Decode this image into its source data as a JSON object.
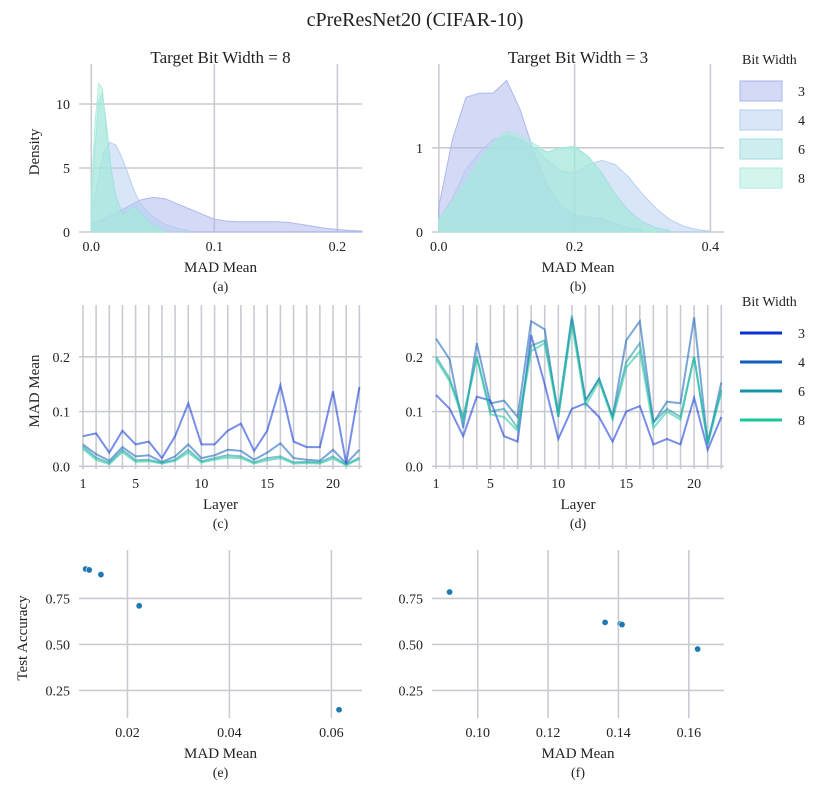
{
  "figure": {
    "title": "cPreResNet20 (CIFAR-10)",
    "legend_title": "Bit Width",
    "bit_widths": [
      "3",
      "4",
      "6",
      "8"
    ],
    "colors_density": [
      "#a9b4ee",
      "#b4cdf0",
      "#9fdde0",
      "#a8ecdc"
    ],
    "colors_line": [
      "#0a32d6",
      "#0f5fb8",
      "#1494a6",
      "#16c79a"
    ]
  },
  "chart_data": [
    {
      "id": "a",
      "type": "area",
      "panel_label": "(a)",
      "title": "Target Bit Width = 8",
      "xlabel": "MAD Mean",
      "ylabel": "Density",
      "xlim": [
        -0.01,
        0.22
      ],
      "ylim": [
        0,
        12.5
      ],
      "xticks": [
        0.0,
        0.1,
        0.2
      ],
      "xtick_labels": [
        "0.0",
        "0.1",
        "0.2"
      ],
      "yticks": [
        0,
        5,
        10
      ],
      "ytick_labels": [
        "0",
        "5",
        "10"
      ],
      "series": [
        {
          "name": "3",
          "x": [
            0.0,
            0.01,
            0.02,
            0.03,
            0.04,
            0.05,
            0.06,
            0.07,
            0.08,
            0.09,
            0.1,
            0.11,
            0.12,
            0.13,
            0.14,
            0.15,
            0.16,
            0.17,
            0.18,
            0.19,
            0.2,
            0.21,
            0.22
          ],
          "values": [
            0.7,
            1.0,
            1.5,
            2.0,
            2.5,
            2.7,
            2.6,
            2.2,
            1.8,
            1.4,
            1.0,
            0.85,
            0.8,
            0.8,
            0.8,
            0.8,
            0.75,
            0.6,
            0.45,
            0.3,
            0.2,
            0.12,
            0.08
          ]
        },
        {
          "name": "4",
          "x": [
            0.0,
            0.005,
            0.01,
            0.015,
            0.02,
            0.025,
            0.03,
            0.035,
            0.04,
            0.05,
            0.06,
            0.07,
            0.08
          ],
          "values": [
            1.5,
            3.8,
            6.2,
            7.0,
            6.8,
            5.8,
            4.5,
            3.2,
            2.2,
            1.2,
            0.6,
            0.3,
            0.1
          ]
        },
        {
          "name": "6",
          "x": [
            0.0,
            0.003,
            0.006,
            0.009,
            0.012,
            0.016,
            0.02,
            0.025,
            0.03,
            0.035,
            0.04,
            0.05,
            0.06
          ],
          "values": [
            2.0,
            6.5,
            10.2,
            10.9,
            8.6,
            5.0,
            2.8,
            1.5,
            1.6,
            2.0,
            1.5,
            0.5,
            0.1
          ]
        },
        {
          "name": "8",
          "x": [
            0.0,
            0.003,
            0.006,
            0.009,
            0.012,
            0.016,
            0.02,
            0.025,
            0.03,
            0.035,
            0.04,
            0.05,
            0.06
          ],
          "values": [
            3.0,
            8.5,
            11.6,
            11.2,
            8.0,
            4.2,
            2.0,
            1.2,
            1.5,
            1.9,
            1.4,
            0.4,
            0.1
          ]
        }
      ]
    },
    {
      "id": "b",
      "type": "area",
      "panel_label": "(b)",
      "title": "Target Bit Width = 3",
      "xlabel": "MAD Mean",
      "ylabel": "",
      "xlim": [
        -0.01,
        0.42
      ],
      "ylim": [
        0,
        1.9
      ],
      "xticks": [
        0.0,
        0.2,
        0.4
      ],
      "xtick_labels": [
        "0.0",
        "0.2",
        "0.4"
      ],
      "yticks": [
        0,
        1
      ],
      "ytick_labels": [
        "0",
        "1"
      ],
      "series": [
        {
          "name": "3",
          "x": [
            0.0,
            0.02,
            0.04,
            0.06,
            0.08,
            0.1,
            0.12,
            0.14,
            0.16,
            0.18,
            0.2,
            0.22,
            0.24,
            0.26,
            0.28,
            0.3
          ],
          "values": [
            0.3,
            1.1,
            1.6,
            1.65,
            1.65,
            1.8,
            1.45,
            0.95,
            0.55,
            0.3,
            0.2,
            0.18,
            0.16,
            0.1,
            0.05,
            0.02
          ]
        },
        {
          "name": "4",
          "x": [
            0.0,
            0.02,
            0.04,
            0.06,
            0.08,
            0.1,
            0.12,
            0.14,
            0.16,
            0.18,
            0.2,
            0.22,
            0.24,
            0.26,
            0.28,
            0.3,
            0.32,
            0.34,
            0.36,
            0.38,
            0.4
          ],
          "values": [
            0.15,
            0.4,
            0.75,
            0.95,
            1.1,
            1.15,
            1.1,
            1.0,
            0.85,
            0.72,
            0.7,
            0.8,
            0.85,
            0.8,
            0.65,
            0.45,
            0.28,
            0.15,
            0.07,
            0.03,
            0.01
          ]
        },
        {
          "name": "6",
          "x": [
            0.0,
            0.02,
            0.04,
            0.06,
            0.08,
            0.1,
            0.12,
            0.14,
            0.16,
            0.18,
            0.2,
            0.22,
            0.24,
            0.26,
            0.28,
            0.3,
            0.32,
            0.34
          ],
          "values": [
            0.15,
            0.35,
            0.6,
            0.85,
            1.05,
            1.15,
            1.1,
            1.0,
            0.95,
            1.0,
            1.0,
            0.9,
            0.7,
            0.45,
            0.25,
            0.12,
            0.05,
            0.02
          ]
        },
        {
          "name": "8",
          "x": [
            0.0,
            0.02,
            0.04,
            0.06,
            0.08,
            0.1,
            0.12,
            0.14,
            0.16,
            0.18,
            0.2,
            0.22,
            0.24,
            0.26,
            0.28,
            0.3,
            0.32
          ],
          "values": [
            0.15,
            0.35,
            0.6,
            0.85,
            1.05,
            1.2,
            1.15,
            1.05,
            0.95,
            1.0,
            1.02,
            0.9,
            0.65,
            0.4,
            0.2,
            0.08,
            0.02
          ]
        }
      ]
    },
    {
      "id": "c",
      "type": "line",
      "panel_label": "(c)",
      "xlabel": "Layer",
      "ylabel": "MAD Mean",
      "xlim": [
        0.7,
        22.2
      ],
      "ylim": [
        -0.005,
        0.28
      ],
      "xticks": [
        1,
        5,
        10,
        15,
        20
      ],
      "xtick_labels": [
        "1",
        "5",
        "10",
        "15",
        "20"
      ],
      "yticks": [
        0.0,
        0.1,
        0.2
      ],
      "ytick_labels": [
        "0.0",
        "0.1",
        "0.2"
      ],
      "x": [
        1,
        2,
        3,
        4,
        5,
        6,
        7,
        8,
        9,
        10,
        11,
        12,
        13,
        14,
        15,
        16,
        17,
        18,
        19,
        20,
        21,
        22
      ],
      "series": [
        {
          "name": "3",
          "values": [
            0.055,
            0.06,
            0.025,
            0.065,
            0.04,
            0.045,
            0.015,
            0.055,
            0.115,
            0.04,
            0.04,
            0.065,
            0.078,
            0.028,
            0.065,
            0.148,
            0.045,
            0.035,
            0.035,
            0.137,
            0.005,
            0.145
          ]
        },
        {
          "name": "4",
          "values": [
            0.04,
            0.022,
            0.01,
            0.035,
            0.018,
            0.02,
            0.008,
            0.018,
            0.04,
            0.015,
            0.02,
            0.03,
            0.028,
            0.012,
            0.025,
            0.042,
            0.015,
            0.012,
            0.01,
            0.03,
            0.005,
            0.03
          ]
        },
        {
          "name": "6",
          "values": [
            0.036,
            0.016,
            0.006,
            0.03,
            0.011,
            0.012,
            0.006,
            0.012,
            0.03,
            0.009,
            0.015,
            0.02,
            0.018,
            0.007,
            0.015,
            0.018,
            0.007,
            0.008,
            0.007,
            0.018,
            0.003,
            0.016
          ]
        },
        {
          "name": "8",
          "values": [
            0.032,
            0.012,
            0.004,
            0.026,
            0.008,
            0.009,
            0.005,
            0.01,
            0.025,
            0.007,
            0.012,
            0.016,
            0.015,
            0.005,
            0.011,
            0.015,
            0.005,
            0.006,
            0.005,
            0.014,
            0.002,
            0.013
          ]
        }
      ]
    },
    {
      "id": "d",
      "type": "line",
      "panel_label": "(d)",
      "xlabel": "Layer",
      "ylabel": "",
      "xlim": [
        0.7,
        22.2
      ],
      "ylim": [
        -0.005,
        0.28
      ],
      "xticks": [
        1,
        5,
        10,
        15,
        20
      ],
      "xtick_labels": [
        "1",
        "5",
        "10",
        "15",
        "20"
      ],
      "yticks": [
        0.0,
        0.1,
        0.2
      ],
      "ytick_labels": [
        "0.0",
        "0.1",
        "0.2"
      ],
      "x": [
        1,
        2,
        3,
        4,
        5,
        6,
        7,
        8,
        9,
        10,
        11,
        12,
        13,
        14,
        15,
        16,
        17,
        18,
        19,
        20,
        21,
        22
      ],
      "series": [
        {
          "name": "3",
          "values": [
            0.13,
            0.105,
            0.055,
            0.127,
            0.12,
            0.055,
            0.045,
            0.24,
            0.15,
            0.05,
            0.105,
            0.115,
            0.09,
            0.045,
            0.1,
            0.11,
            0.04,
            0.05,
            0.04,
            0.125,
            0.03,
            0.09
          ]
        },
        {
          "name": "4",
          "values": [
            0.233,
            0.195,
            0.07,
            0.225,
            0.115,
            0.12,
            0.09,
            0.265,
            0.25,
            0.09,
            0.27,
            0.12,
            0.16,
            0.09,
            0.23,
            0.265,
            0.08,
            0.118,
            0.115,
            0.272,
            0.04,
            0.153
          ]
        },
        {
          "name": "6",
          "values": [
            0.2,
            0.16,
            0.09,
            0.2,
            0.1,
            0.105,
            0.07,
            0.22,
            0.23,
            0.1,
            0.275,
            0.12,
            0.16,
            0.09,
            0.19,
            0.225,
            0.08,
            0.105,
            0.09,
            0.2,
            0.045,
            0.14
          ]
        },
        {
          "name": "8",
          "values": [
            0.195,
            0.155,
            0.085,
            0.2,
            0.095,
            0.09,
            0.065,
            0.21,
            0.225,
            0.09,
            0.26,
            0.11,
            0.155,
            0.085,
            0.18,
            0.21,
            0.07,
            0.1,
            0.085,
            0.2,
            0.04,
            0.135
          ]
        }
      ]
    },
    {
      "id": "e",
      "type": "scatter",
      "panel_label": "(e)",
      "xlabel": "MAD Mean",
      "ylabel": "Test Accuracy",
      "xlim": [
        0.0105,
        0.066
      ],
      "ylim": [
        0.1,
        0.97
      ],
      "xticks": [
        0.02,
        0.04,
        0.06
      ],
      "xtick_labels": [
        "0.02",
        "0.04",
        "0.06"
      ],
      "yticks": [
        0.25,
        0.5,
        0.75
      ],
      "ytick_labels": [
        "0.25",
        "0.50",
        "0.75"
      ],
      "points": [
        {
          "x": 0.0118,
          "y": 0.91
        },
        {
          "x": 0.0125,
          "y": 0.905
        },
        {
          "x": 0.0148,
          "y": 0.88
        },
        {
          "x": 0.0223,
          "y": 0.71
        },
        {
          "x": 0.0615,
          "y": 0.145
        }
      ]
    },
    {
      "id": "f",
      "type": "scatter",
      "panel_label": "(f)",
      "xlabel": "MAD Mean",
      "ylabel": "",
      "xlim": [
        0.087,
        0.17
      ],
      "ylim": [
        0.1,
        0.97
      ],
      "xticks": [
        0.1,
        0.12,
        0.14,
        0.16
      ],
      "xtick_labels": [
        "0.10",
        "0.12",
        "0.14",
        "0.16"
      ],
      "yticks": [
        0.25,
        0.5,
        0.75
      ],
      "ytick_labels": [
        "0.25",
        "0.50",
        "0.75"
      ],
      "points": [
        {
          "x": 0.092,
          "y": 0.785
        },
        {
          "x": 0.1362,
          "y": 0.62
        },
        {
          "x": 0.1405,
          "y": 0.612
        },
        {
          "x": 0.141,
          "y": 0.608
        },
        {
          "x": 0.1625,
          "y": 0.475
        }
      ]
    }
  ]
}
